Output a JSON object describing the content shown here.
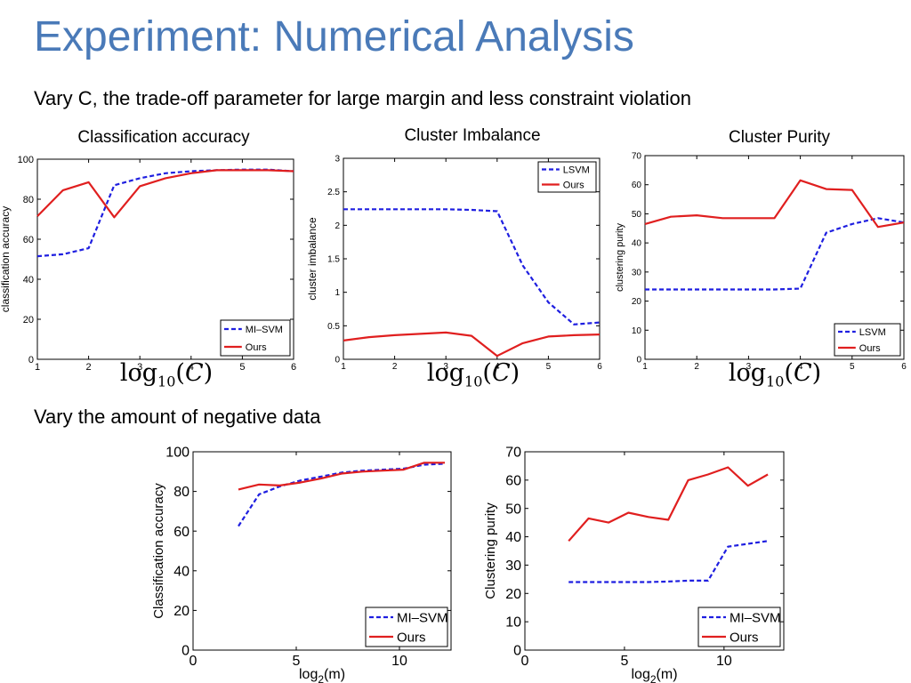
{
  "slide": {
    "title": "Experiment: Numerical Analysis",
    "section1": "Vary C, the trade-off parameter for large margin and less constraint violation",
    "section2": "Vary the amount of negative data"
  },
  "formula": {
    "fn": "log",
    "base": "10",
    "arg": "C"
  },
  "colors": {
    "title": "#4a7ab8",
    "baseline": "#1f1fe0",
    "ours": "#e01f1f"
  },
  "chart_data": [
    {
      "id": "c1",
      "type": "line",
      "heading": "Classification accuracy",
      "ylabel": "classification  accuracy",
      "xlabel": "",
      "xlim": [
        1,
        6
      ],
      "ylim": [
        0,
        100
      ],
      "xticks": [
        1,
        2,
        3,
        4,
        5,
        6
      ],
      "yticks": [
        0,
        20,
        40,
        60,
        80,
        100
      ],
      "legend": "bottom-right",
      "series": [
        {
          "name": "MI–SVM",
          "style": "dashed",
          "color": "#1f1fe0",
          "x": [
            1,
            1.5,
            2,
            2.5,
            3,
            3.5,
            4,
            4.5,
            5,
            5.5,
            6
          ],
          "y": [
            51.5,
            52.5,
            55.5,
            87,
            90.5,
            93,
            94,
            94.5,
            94.8,
            94.8,
            94
          ]
        },
        {
          "name": "Ours",
          "style": "solid",
          "color": "#e01f1f",
          "x": [
            1,
            1.5,
            2,
            2.5,
            3,
            3.5,
            4,
            4.5,
            5,
            5.5,
            6
          ],
          "y": [
            71.5,
            84.5,
            88.5,
            71,
            86.5,
            90.5,
            93,
            94.5,
            94.5,
            94.5,
            94
          ]
        }
      ]
    },
    {
      "id": "c2",
      "type": "line",
      "heading": "Cluster Imbalance",
      "ylabel": "cluster  imbalance",
      "xlabel": "",
      "xlim": [
        1,
        6
      ],
      "ylim": [
        0,
        3
      ],
      "xticks": [
        1,
        2,
        3,
        4,
        5,
        6
      ],
      "yticks": [
        0,
        0.5,
        1,
        1.5,
        2,
        2.5,
        3
      ],
      "legend": "top-right",
      "series": [
        {
          "name": "LSVM",
          "style": "dashed",
          "color": "#1f1fe0",
          "x": [
            1,
            1.5,
            2,
            2.5,
            3,
            3.5,
            4,
            4.5,
            5,
            5.5,
            6
          ],
          "y": [
            2.24,
            2.24,
            2.24,
            2.24,
            2.24,
            2.23,
            2.21,
            1.4,
            0.85,
            0.52,
            0.55
          ]
        },
        {
          "name": "Ours",
          "style": "solid",
          "color": "#e01f1f",
          "x": [
            1,
            1.5,
            2,
            2.5,
            3,
            3.5,
            4,
            4.5,
            5,
            5.5,
            6
          ],
          "y": [
            0.28,
            0.33,
            0.36,
            0.38,
            0.4,
            0.35,
            0.05,
            0.24,
            0.34,
            0.36,
            0.37
          ]
        }
      ]
    },
    {
      "id": "c3",
      "type": "line",
      "heading": "Cluster Purity",
      "ylabel": "clustering  purity",
      "xlabel": "",
      "xlim": [
        1,
        6
      ],
      "ylim": [
        0,
        70
      ],
      "xticks": [
        1,
        2,
        3,
        4,
        5,
        6
      ],
      "yticks": [
        0,
        10,
        20,
        30,
        40,
        50,
        60,
        70
      ],
      "legend": "bottom-right",
      "series": [
        {
          "name": "LSVM",
          "style": "dashed",
          "color": "#1f1fe0",
          "x": [
            1,
            1.5,
            2,
            2.5,
            3,
            3.5,
            4,
            4.5,
            5,
            5.5,
            6
          ],
          "y": [
            24,
            24,
            24,
            24,
            24,
            24,
            24.3,
            43.5,
            46.5,
            48.5,
            47
          ]
        },
        {
          "name": "Ours",
          "style": "solid",
          "color": "#e01f1f",
          "x": [
            1,
            1.5,
            2,
            2.5,
            3,
            3.5,
            4,
            4.5,
            5,
            5.5,
            6
          ],
          "y": [
            46.5,
            49,
            49.5,
            48.5,
            48.5,
            48.5,
            61.5,
            58.5,
            58.2,
            45.5,
            47
          ]
        }
      ]
    },
    {
      "id": "c4",
      "type": "line",
      "heading": "",
      "ylabel": "Classification accuracy",
      "xlabel": "log",
      "xlabel_sub": "2",
      "xlabel_suffix": "(m)",
      "xlim": [
        0,
        12.5
      ],
      "ylim": [
        0,
        100
      ],
      "xticks": [
        0,
        5,
        10
      ],
      "yticks": [
        0,
        20,
        40,
        60,
        80,
        100
      ],
      "legend": "bottom-right",
      "series": [
        {
          "name": "MI–SVM",
          "style": "dashed",
          "color": "#1f1fe0",
          "x": [
            2.2,
            3.2,
            4.2,
            5.2,
            6.2,
            7.2,
            8.2,
            9.2,
            10.2,
            11.2,
            12.2
          ],
          "y": [
            62.5,
            78.5,
            82.5,
            85.5,
            87.5,
            89.5,
            90.5,
            91,
            91.5,
            93.5,
            94
          ]
        },
        {
          "name": "Ours",
          "style": "solid",
          "color": "#e01f1f",
          "x": [
            2.2,
            3.2,
            4.2,
            5.2,
            6.2,
            7.2,
            8.2,
            9.2,
            10.2,
            11.2,
            12.2
          ],
          "y": [
            81,
            83.5,
            83,
            84.5,
            86.5,
            89,
            90,
            90.5,
            91,
            94.5,
            94.5
          ]
        }
      ]
    },
    {
      "id": "c5",
      "type": "line",
      "heading": "",
      "ylabel": "Clustering purity",
      "xlabel": "log",
      "xlabel_sub": "2",
      "xlabel_suffix": "(m)",
      "xlim": [
        0,
        13
      ],
      "ylim": [
        0,
        70
      ],
      "xticks": [
        0,
        5,
        10
      ],
      "yticks": [
        0,
        10,
        20,
        30,
        40,
        50,
        60,
        70
      ],
      "legend": "bottom-right",
      "series": [
        {
          "name": "MI–SVM",
          "style": "dashed",
          "color": "#1f1fe0",
          "x": [
            2.2,
            3.2,
            4.2,
            5.2,
            6.2,
            7.2,
            8.2,
            9.2,
            10.2,
            11.2,
            12.2
          ],
          "y": [
            24,
            24,
            24,
            24,
            24,
            24.2,
            24.5,
            24.5,
            36.5,
            37.5,
            38.5
          ]
        },
        {
          "name": "Ours",
          "style": "solid",
          "color": "#e01f1f",
          "x": [
            2.2,
            3.2,
            4.2,
            5.2,
            6.2,
            7.2,
            8.2,
            9.2,
            10.2,
            11.2,
            12.2
          ],
          "y": [
            38.5,
            46.5,
            45,
            48.5,
            47,
            46,
            60,
            62,
            64.5,
            58,
            62
          ]
        }
      ]
    }
  ]
}
